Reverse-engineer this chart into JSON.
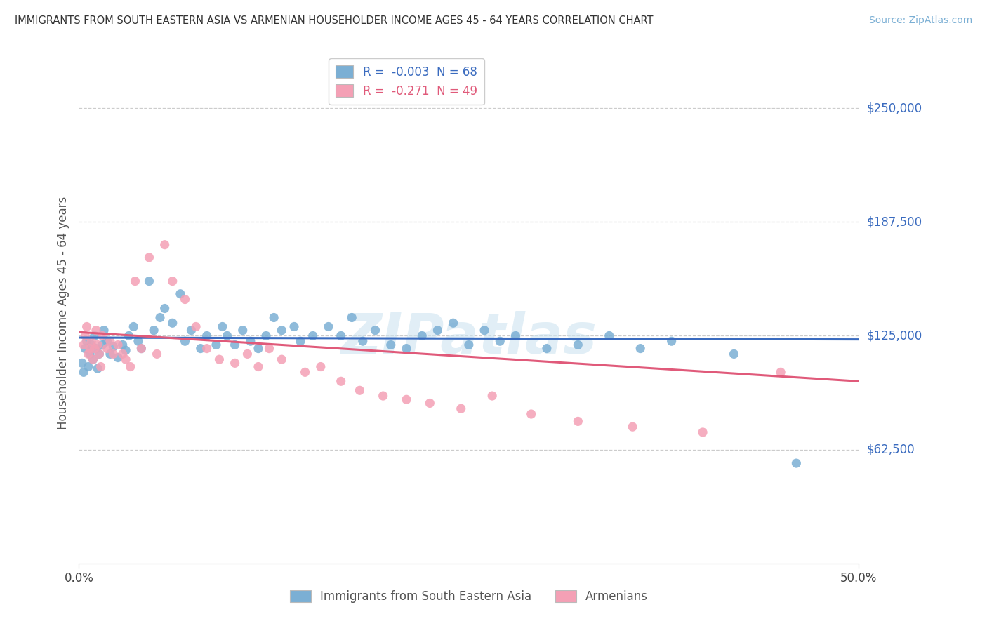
{
  "title": "IMMIGRANTS FROM SOUTH EASTERN ASIA VS ARMENIAN HOUSEHOLDER INCOME AGES 45 - 64 YEARS CORRELATION CHART",
  "source": "Source: ZipAtlas.com",
  "ylabel": "Householder Income Ages 45 - 64 years",
  "yticks": [
    62500,
    125000,
    187500,
    250000
  ],
  "ytick_labels": [
    "$62,500",
    "$125,000",
    "$187,500",
    "$250,000"
  ],
  "xlim": [
    0.0,
    0.5
  ],
  "ylim": [
    0,
    275000
  ],
  "legend_entry1": "R =  -0.003  N = 68",
  "legend_entry2": "R =  -0.271  N = 49",
  "legend_label1": "Immigrants from South Eastern Asia",
  "legend_label2": "Armenians",
  "blue_color": "#7bafd4",
  "pink_color": "#f4a0b5",
  "blue_line_color": "#3a6bbf",
  "pink_line_color": "#e05a7a",
  "background_color": "#ffffff",
  "watermark_text": "ZIPatlas",
  "blue_scatter_x": [
    0.002,
    0.003,
    0.004,
    0.005,
    0.006,
    0.007,
    0.008,
    0.009,
    0.01,
    0.011,
    0.012,
    0.013,
    0.015,
    0.016,
    0.018,
    0.02,
    0.022,
    0.025,
    0.028,
    0.03,
    0.032,
    0.035,
    0.038,
    0.04,
    0.045,
    0.048,
    0.052,
    0.055,
    0.06,
    0.065,
    0.068,
    0.072,
    0.078,
    0.082,
    0.088,
    0.092,
    0.095,
    0.1,
    0.105,
    0.11,
    0.115,
    0.12,
    0.125,
    0.13,
    0.138,
    0.142,
    0.15,
    0.16,
    0.168,
    0.175,
    0.182,
    0.19,
    0.2,
    0.21,
    0.22,
    0.23,
    0.24,
    0.25,
    0.26,
    0.27,
    0.28,
    0.3,
    0.32,
    0.34,
    0.36,
    0.38,
    0.42,
    0.46
  ],
  "blue_scatter_y": [
    110000,
    105000,
    118000,
    122000,
    108000,
    115000,
    120000,
    112000,
    125000,
    118000,
    107000,
    115000,
    120000,
    128000,
    122000,
    115000,
    119000,
    113000,
    120000,
    117000,
    125000,
    130000,
    122000,
    118000,
    155000,
    128000,
    135000,
    140000,
    132000,
    148000,
    122000,
    128000,
    118000,
    125000,
    120000,
    130000,
    125000,
    120000,
    128000,
    122000,
    118000,
    125000,
    135000,
    128000,
    130000,
    122000,
    125000,
    130000,
    125000,
    135000,
    122000,
    128000,
    120000,
    118000,
    125000,
    128000,
    132000,
    120000,
    128000,
    122000,
    125000,
    118000,
    120000,
    125000,
    118000,
    122000,
    115000,
    55000
  ],
  "pink_scatter_x": [
    0.003,
    0.004,
    0.005,
    0.006,
    0.007,
    0.008,
    0.009,
    0.01,
    0.011,
    0.012,
    0.013,
    0.014,
    0.015,
    0.018,
    0.02,
    0.022,
    0.025,
    0.028,
    0.03,
    0.033,
    0.036,
    0.04,
    0.045,
    0.05,
    0.055,
    0.06,
    0.068,
    0.075,
    0.082,
    0.09,
    0.1,
    0.108,
    0.115,
    0.122,
    0.13,
    0.145,
    0.155,
    0.168,
    0.18,
    0.195,
    0.21,
    0.225,
    0.245,
    0.265,
    0.29,
    0.32,
    0.355,
    0.4,
    0.45
  ],
  "pink_scatter_y": [
    120000,
    125000,
    130000,
    115000,
    118000,
    122000,
    112000,
    118000,
    128000,
    120000,
    115000,
    108000,
    125000,
    118000,
    122000,
    115000,
    120000,
    115000,
    112000,
    108000,
    155000,
    118000,
    168000,
    115000,
    175000,
    155000,
    145000,
    130000,
    118000,
    112000,
    110000,
    115000,
    108000,
    118000,
    112000,
    105000,
    108000,
    100000,
    95000,
    92000,
    90000,
    88000,
    85000,
    92000,
    82000,
    78000,
    75000,
    72000,
    105000
  ]
}
